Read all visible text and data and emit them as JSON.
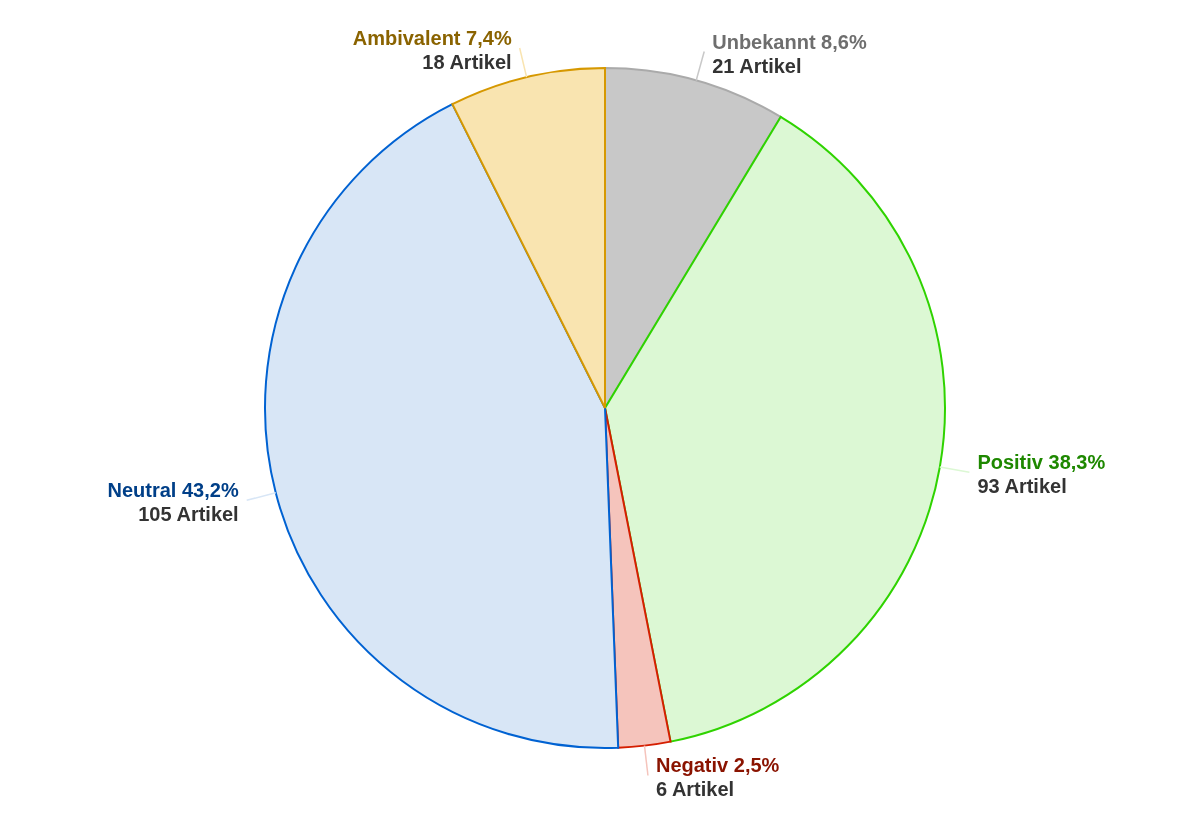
{
  "chart_data": {
    "type": "pie",
    "categories": [
      "Unbekannt",
      "Positiv",
      "Negativ",
      "Neutral",
      "Ambivalent"
    ],
    "values": [
      21,
      93,
      6,
      105,
      18
    ],
    "value_labels": [
      "8,6%\n21 Artikel",
      "38,3%\n93 Artikel",
      "2,5%\n6 Artikel",
      "43,2%\n105 Artikel",
      "7,4%\n18 Artikel"
    ],
    "colors": [
      "#c8c8c8",
      "#dcf8d4",
      "#f5c4bc",
      "#d8e6f6",
      "#f9e4b0"
    ]
  }
}
